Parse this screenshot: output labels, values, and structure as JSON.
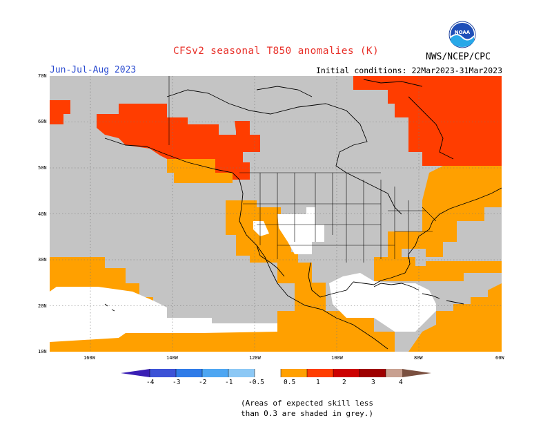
{
  "title": "CFSv2 seasonal T850 anomalies (K)",
  "season": "Jun-Jul-Aug 2023",
  "initial_conditions": "Initial conditions: 22Mar2023-31Mar2023",
  "organization": "NWS/NCEP/CPC",
  "logo_text": "NOAA",
  "lat_labels": [
    "70N",
    "60N",
    "50N",
    "40N",
    "30N",
    "20N",
    "10N"
  ],
  "lon_labels": [
    "160W",
    "140W",
    "120W",
    "100W",
    "80W",
    "60W"
  ],
  "colorbar": {
    "ticks": [
      "-4",
      "-3",
      "-2",
      "-1",
      "-0.5",
      "0.5",
      "1",
      "2",
      "3",
      "4"
    ],
    "colors": [
      "#3a1fb4",
      "#3c52d6",
      "#2f7be8",
      "#4ea6f2",
      "#8cc8f5",
      "#ffffff",
      "#ffa000",
      "#ff3d00",
      "#cc0000",
      "#9e0000",
      "#c8a090",
      "#7a5040"
    ]
  },
  "legend_note": [
    "(Areas of expected skill less",
    "than 0.3 are shaded in grey.)"
  ],
  "colors": {
    "grey": "#c4c4c4",
    "orange": "#ffa000",
    "red": "#ff3d00",
    "white": "#ffffff"
  }
}
